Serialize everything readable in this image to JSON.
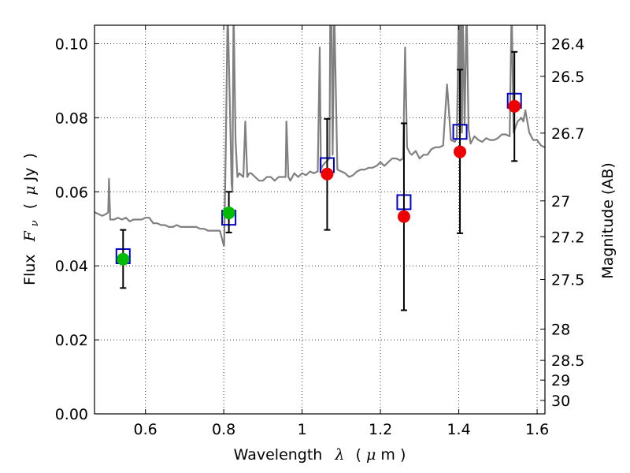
{
  "chart_data": {
    "type": "scatter",
    "title": "",
    "xlabel": "Wavelength λ (μm)",
    "ylabel": "Flux F_ν (μJy)",
    "y2label": "Magnitude (AB)",
    "xlim": [
      0.47,
      1.62
    ],
    "ylim": [
      0.0,
      0.105
    ],
    "grid": true,
    "x_ticks": [
      0.6,
      0.8,
      1.0,
      1.2,
      1.4,
      1.6
    ],
    "x_tick_labels": [
      "0.6",
      "0.8",
      "1",
      "1.2",
      "1.4",
      "1.6"
    ],
    "y_ticks": [
      0.0,
      0.02,
      0.04,
      0.06,
      0.08,
      0.1
    ],
    "y_tick_labels": [
      "0.00",
      "0.02",
      "0.04",
      "0.06",
      "0.08",
      "0.10"
    ],
    "y2_ticks": [
      "26.4",
      "26.5",
      "26.7",
      "27",
      "27.2",
      "27.5",
      "28",
      "28.5",
      "29",
      "30"
    ],
    "ylabel_parts": {
      "prefix": "Flux",
      "symbol": "F",
      "subscript": "ν",
      "unit_open": "(",
      "unit_mu": "μ",
      "unit": "Jy",
      "unit_close": ")"
    },
    "xlabel_parts": {
      "prefix": "Wavelength",
      "symbol": "λ",
      "unit_open": "(",
      "unit_mu": "μ",
      "unit": "m",
      "unit_close": ")"
    },
    "colors": {
      "model": "#808080",
      "box": "#0000cc",
      "green": "#00bb00",
      "red": "#ee0000",
      "errorbar": "#000000"
    },
    "series": [
      {
        "name": "model spectrum",
        "kind": "line",
        "x": [
          0.47,
          0.48,
          0.49,
          0.5,
          0.505,
          0.507,
          0.51,
          0.52,
          0.53,
          0.54,
          0.55,
          0.56,
          0.57,
          0.58,
          0.59,
          0.6,
          0.61,
          0.62,
          0.63,
          0.64,
          0.65,
          0.66,
          0.67,
          0.68,
          0.69,
          0.7,
          0.71,
          0.72,
          0.73,
          0.74,
          0.75,
          0.76,
          0.77,
          0.78,
          0.79,
          0.795,
          0.8,
          0.801,
          0.805,
          0.81,
          0.815,
          0.82,
          0.822,
          0.825,
          0.83,
          0.835,
          0.84,
          0.85,
          0.855,
          0.86,
          0.865,
          0.87,
          0.88,
          0.89,
          0.9,
          0.91,
          0.92,
          0.93,
          0.94,
          0.95,
          0.958,
          0.96,
          0.965,
          0.97,
          0.98,
          0.99,
          1.0,
          1.01,
          1.02,
          1.03,
          1.04,
          1.045,
          1.048,
          1.052,
          1.06,
          1.07,
          1.072,
          1.075,
          1.078,
          1.082,
          1.09,
          1.1,
          1.11,
          1.12,
          1.13,
          1.14,
          1.15,
          1.16,
          1.17,
          1.18,
          1.19,
          1.2,
          1.21,
          1.22,
          1.23,
          1.24,
          1.25,
          1.258,
          1.263,
          1.268,
          1.275,
          1.28,
          1.29,
          1.3,
          1.31,
          1.32,
          1.33,
          1.34,
          1.35,
          1.36,
          1.37,
          1.38,
          1.39,
          1.395,
          1.4,
          1.403,
          1.405,
          1.408,
          1.41,
          1.415,
          1.42,
          1.425,
          1.43,
          1.44,
          1.45,
          1.46,
          1.47,
          1.48,
          1.49,
          1.5,
          1.51,
          1.52,
          1.53,
          1.535,
          1.54,
          1.545,
          1.55,
          1.56,
          1.565,
          1.57,
          1.575,
          1.58,
          1.59,
          1.6,
          1.61,
          1.62
        ],
        "y": [
          0.0545,
          0.054,
          0.0535,
          0.054,
          0.0545,
          0.0635,
          0.0525,
          0.0525,
          0.053,
          0.0525,
          0.053,
          0.052,
          0.0525,
          0.0525,
          0.0525,
          0.053,
          0.053,
          0.0515,
          0.0515,
          0.051,
          0.051,
          0.0505,
          0.0505,
          0.051,
          0.0505,
          0.0505,
          0.0505,
          0.0505,
          0.0505,
          0.05,
          0.05,
          0.0495,
          0.0495,
          0.0495,
          0.0495,
          0.0475,
          0.0455,
          0.0455,
          0.07,
          0.11,
          0.086,
          0.062,
          0.06,
          0.11,
          0.074,
          0.064,
          0.065,
          0.064,
          0.079,
          0.064,
          0.065,
          0.065,
          0.064,
          0.063,
          0.063,
          0.064,
          0.064,
          0.063,
          0.064,
          0.064,
          0.064,
          0.079,
          0.064,
          0.063,
          0.065,
          0.064,
          0.065,
          0.0645,
          0.0655,
          0.065,
          0.0655,
          0.099,
          0.066,
          0.067,
          0.068,
          0.069,
          0.11,
          0.11,
          0.07,
          0.11,
          0.066,
          0.0655,
          0.065,
          0.064,
          0.0645,
          0.0655,
          0.066,
          0.066,
          0.0665,
          0.0665,
          0.067,
          0.068,
          0.067,
          0.068,
          0.069,
          0.069,
          0.0685,
          0.069,
          0.099,
          0.072,
          0.0705,
          0.07,
          0.071,
          0.069,
          0.07,
          0.07,
          0.0715,
          0.072,
          0.072,
          0.0725,
          0.089,
          0.074,
          0.0735,
          0.0745,
          0.11,
          0.076,
          0.11,
          0.076,
          0.11,
          0.078,
          0.11,
          0.077,
          0.073,
          0.075,
          0.074,
          0.0735,
          0.0745,
          0.074,
          0.074,
          0.0745,
          0.0755,
          0.0755,
          0.075,
          0.11,
          0.076,
          0.0775,
          0.079,
          0.08,
          0.079,
          0.082,
          0.079,
          0.076,
          0.074,
          0.074,
          0.0725,
          0.072
        ]
      },
      {
        "name": "model photometry",
        "kind": "open_square",
        "x": [
          0.543,
          0.813,
          1.064,
          1.26,
          1.403,
          1.542
        ],
        "y": [
          0.0426,
          0.053,
          0.0672,
          0.0572,
          0.0762,
          0.0846
        ]
      },
      {
        "name": "observed (green)",
        "kind": "filled_circle",
        "x": [
          0.543,
          0.813
        ],
        "y": [
          0.0418,
          0.0543
        ],
        "yerr_low": [
          0.034,
          0.049
        ],
        "yerr_high": [
          0.0497,
          0.06
        ]
      },
      {
        "name": "observed (red)",
        "kind": "filled_circle",
        "x": [
          1.064,
          1.26,
          1.403,
          1.542
        ],
        "y": [
          0.0648,
          0.0533,
          0.0708,
          0.0831
        ],
        "yerr_low": [
          0.0497,
          0.028,
          0.0488,
          0.0683
        ],
        "yerr_high": [
          0.0797,
          0.0785,
          0.093,
          0.0978
        ]
      }
    ]
  }
}
